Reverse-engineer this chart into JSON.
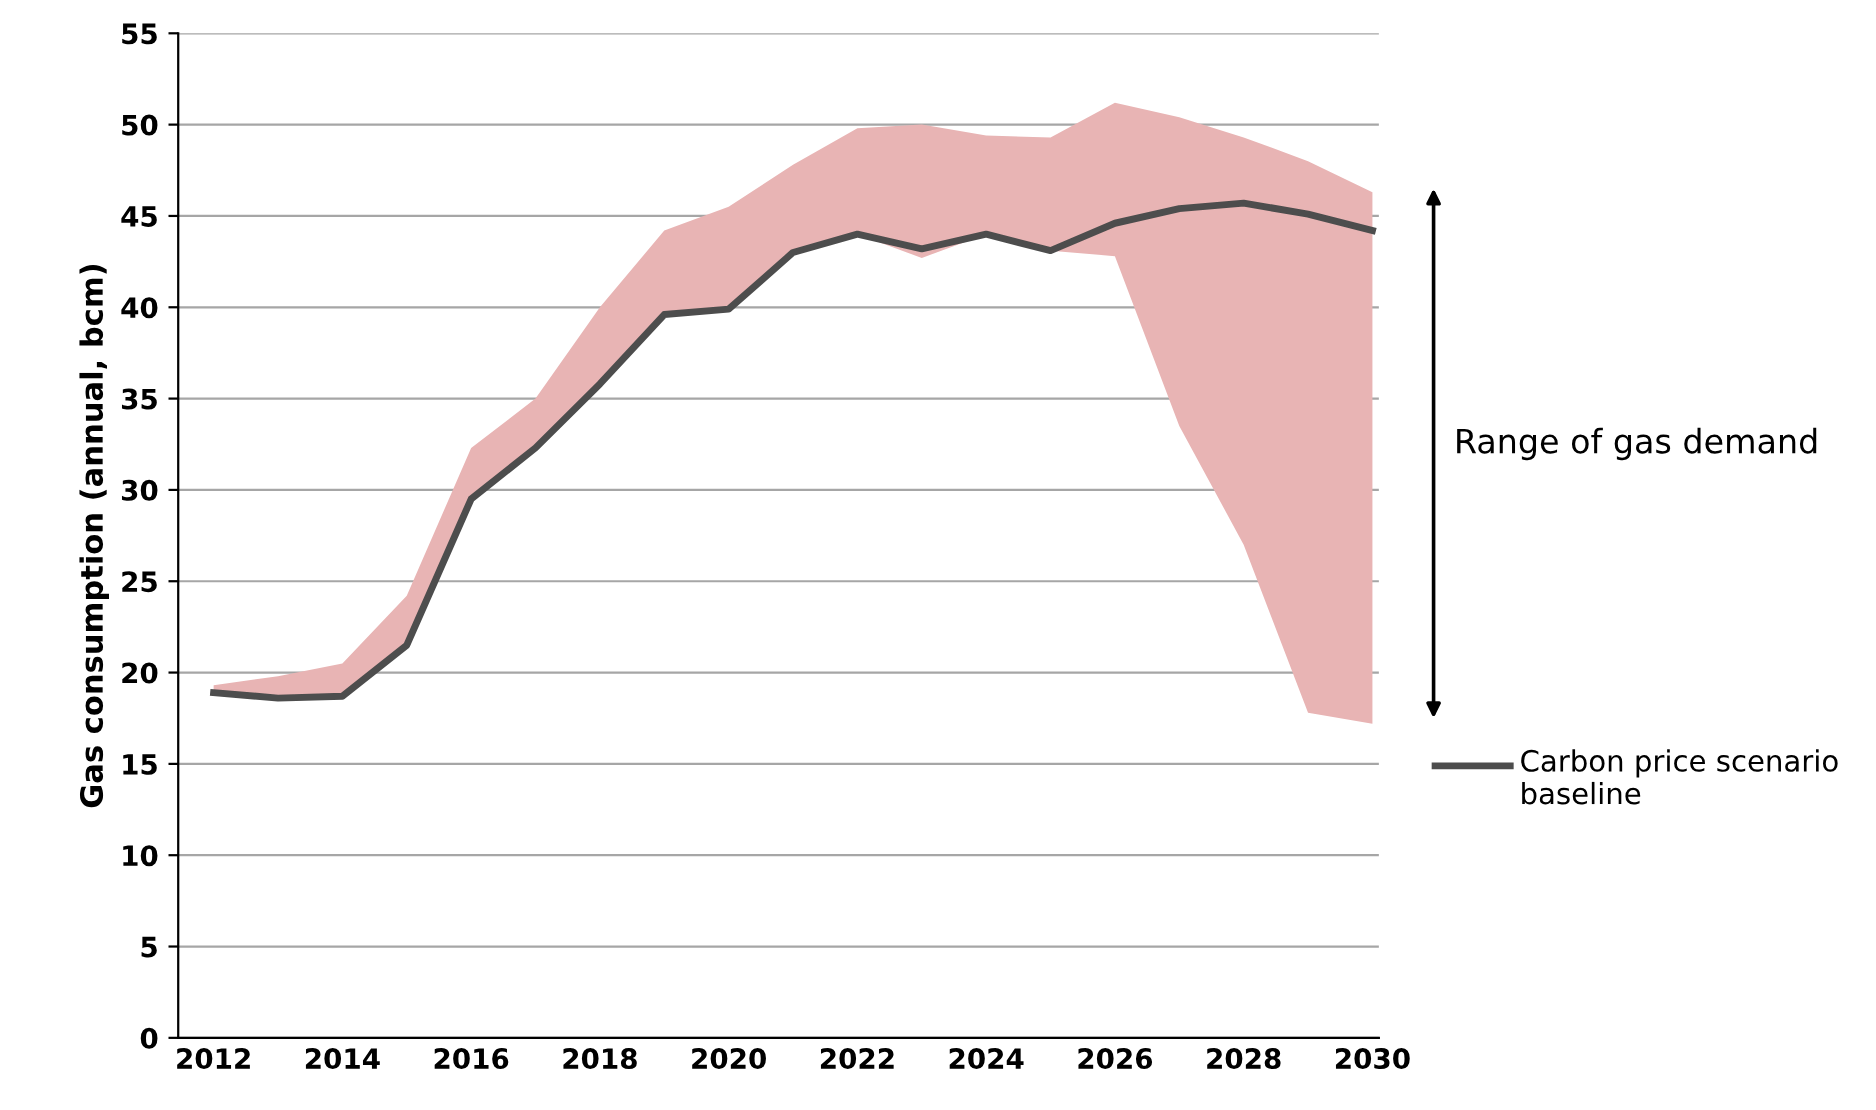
{
  "chart_data": {
    "type": "line",
    "ylabel": "Gas consumption (annual, bcm)",
    "categories": [
      "2012",
      null,
      "2014",
      null,
      "2016",
      null,
      "2018",
      null,
      "2020",
      null,
      "2022",
      null,
      "2024",
      null,
      "2026",
      null,
      "2028",
      null,
      "2030"
    ],
    "series": [
      {
        "name": "Carbon price scenario baseline",
        "color": "#4d4d4d",
        "values": [
          18.9,
          18.6,
          18.7,
          21.5,
          29.5,
          32.3,
          35.8,
          39.6,
          39.9,
          43,
          44,
          43.2,
          44,
          43.1,
          44.6,
          45.4,
          45.7,
          45.1,
          44.2
        ],
        "lower": [
          18.9,
          18.6,
          18.7,
          21.5,
          29.5,
          32.3,
          35.8,
          39.6,
          39.9,
          43,
          44,
          42.7,
          44,
          43.1,
          42.8,
          33.5,
          27,
          17.8,
          17.2
        ],
        "upper": [
          19.3,
          19.8,
          20.5,
          24.2,
          32.3,
          35,
          40,
          44.2,
          45.5,
          47.8,
          49.8,
          50,
          49.4,
          49.3,
          51.2,
          50.4,
          49.3,
          48,
          46.3
        ]
      }
    ],
    "annotations": [
      "Range of gas demand"
    ],
    "ylim": [
      0,
      55
    ],
    "yticks": [
      0,
      5,
      10,
      15,
      20,
      25,
      30,
      35,
      40,
      45,
      50,
      55
    ],
    "grid": "y",
    "legend": "right"
  }
}
